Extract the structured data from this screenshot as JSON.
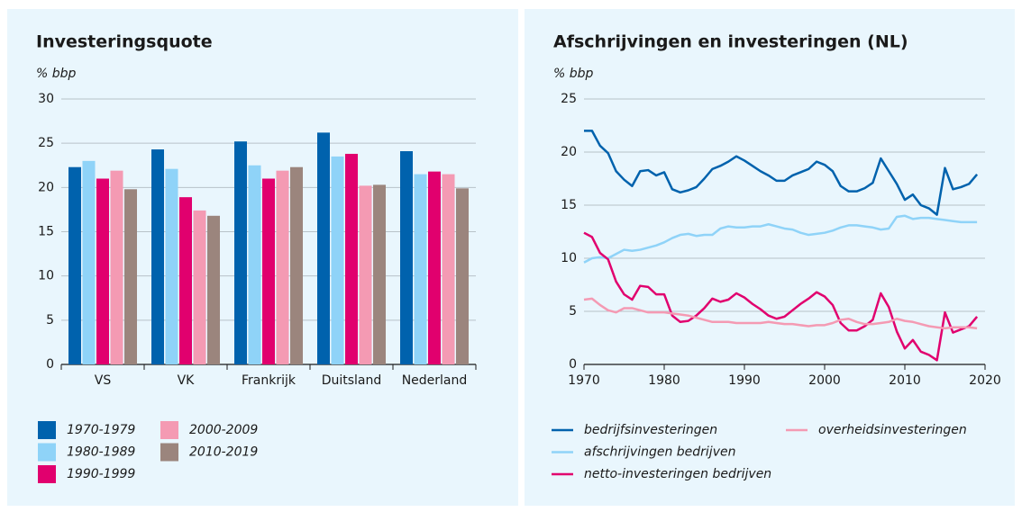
{
  "chart_data": [
    {
      "type": "bar",
      "title": "Investeringsquote",
      "y_label": "% bbp",
      "categories": [
        "VS",
        "VK",
        "Frankrijk",
        "Duitsland",
        "Nederland"
      ],
      "series": [
        {
          "name": "1970-1979",
          "color": "#0062ad",
          "values": [
            22.3,
            24.3,
            25.2,
            26.2,
            24.1
          ]
        },
        {
          "name": "1980-1989",
          "color": "#8fd3f8",
          "values": [
            23.0,
            22.1,
            22.5,
            23.5,
            21.5
          ]
        },
        {
          "name": "1990-1999",
          "color": "#e1006e",
          "values": [
            21.0,
            18.9,
            21.0,
            23.8,
            21.8
          ]
        },
        {
          "name": "2000-2009",
          "color": "#f49ab3",
          "values": [
            21.9,
            17.4,
            21.9,
            20.2,
            21.5
          ]
        },
        {
          "name": "2010-2019",
          "color": "#9b857d",
          "values": [
            19.8,
            16.8,
            22.3,
            20.3,
            19.9
          ]
        }
      ],
      "ylim": [
        0,
        30
      ],
      "yticks": [
        0,
        5,
        10,
        15,
        20,
        25,
        30
      ],
      "grid": true,
      "legend": "bottom"
    },
    {
      "type": "line",
      "title": "Afschrijvingen en investeringen (NL)",
      "y_label": "% bbp",
      "x": [
        1970,
        1971,
        1972,
        1973,
        1974,
        1975,
        1976,
        1977,
        1978,
        1979,
        1980,
        1981,
        1982,
        1983,
        1984,
        1985,
        1986,
        1987,
        1988,
        1989,
        1990,
        1991,
        1992,
        1993,
        1994,
        1995,
        1996,
        1997,
        1998,
        1999,
        2000,
        2001,
        2002,
        2003,
        2004,
        2005,
        2006,
        2007,
        2008,
        2009,
        2010,
        2011,
        2012,
        2013,
        2014,
        2015,
        2016,
        2017,
        2018,
        2019
      ],
      "series": [
        {
          "name": "bedrijfsinvesteringen",
          "color": "#0062ad",
          "values": [
            22.0,
            22.0,
            20.6,
            19.9,
            18.2,
            17.4,
            16.8,
            18.2,
            18.3,
            17.8,
            18.1,
            16.5,
            16.2,
            16.4,
            16.7,
            17.5,
            18.4,
            18.7,
            19.1,
            19.6,
            19.2,
            18.7,
            18.2,
            17.8,
            17.3,
            17.3,
            17.8,
            18.1,
            18.4,
            19.1,
            18.8,
            18.2,
            16.8,
            16.3,
            16.3,
            16.6,
            17.1,
            19.4,
            18.2,
            17.0,
            15.5,
            16.0,
            15.0,
            14.7,
            14.1,
            18.5,
            16.5,
            16.7,
            17.0,
            17.9
          ]
        },
        {
          "name": "afschrijvingen bedrijven",
          "color": "#8fd3f8",
          "values": [
            9.6,
            10.0,
            10.1,
            10.0,
            10.4,
            10.8,
            10.7,
            10.8,
            11.0,
            11.2,
            11.5,
            11.9,
            12.2,
            12.3,
            12.1,
            12.2,
            12.2,
            12.8,
            13.0,
            12.9,
            12.9,
            13.0,
            13.0,
            13.2,
            13.0,
            12.8,
            12.7,
            12.4,
            12.2,
            12.3,
            12.4,
            12.6,
            12.9,
            13.1,
            13.1,
            13.0,
            12.9,
            12.7,
            12.8,
            13.9,
            14.0,
            13.7,
            13.8,
            13.8,
            13.7,
            13.6,
            13.5,
            13.4,
            13.4,
            13.4
          ]
        },
        {
          "name": "netto-investeringen bedrijven",
          "color": "#e1006e",
          "values": [
            12.4,
            12.0,
            10.5,
            9.9,
            7.8,
            6.6,
            6.1,
            7.4,
            7.3,
            6.6,
            6.6,
            4.6,
            4.0,
            4.1,
            4.6,
            5.3,
            6.2,
            5.9,
            6.1,
            6.7,
            6.3,
            5.7,
            5.2,
            4.6,
            4.3,
            4.5,
            5.1,
            5.7,
            6.2,
            6.8,
            6.4,
            5.6,
            3.9,
            3.2,
            3.2,
            3.6,
            4.2,
            6.7,
            5.4,
            3.1,
            1.5,
            2.3,
            1.2,
            0.9,
            0.4,
            4.9,
            3.0,
            3.3,
            3.6,
            4.5
          ]
        },
        {
          "name": "overheidsinvesteringen",
          "color": "#f49ab3",
          "values": [
            6.1,
            6.2,
            5.6,
            5.1,
            4.9,
            5.3,
            5.3,
            5.1,
            4.9,
            4.9,
            4.9,
            4.8,
            4.7,
            4.6,
            4.4,
            4.2,
            4.0,
            4.0,
            4.0,
            3.9,
            3.9,
            3.9,
            3.9,
            4.0,
            3.9,
            3.8,
            3.8,
            3.7,
            3.6,
            3.7,
            3.7,
            3.9,
            4.2,
            4.3,
            4.0,
            3.8,
            3.8,
            3.9,
            4.0,
            4.3,
            4.1,
            4.0,
            3.8,
            3.6,
            3.5,
            3.4,
            3.5,
            3.5,
            3.5,
            3.4
          ]
        }
      ],
      "xlim": [
        1970,
        2020
      ],
      "xticks": [
        1970,
        1980,
        1990,
        2000,
        2010,
        2020
      ],
      "ylim": [
        0,
        25
      ],
      "yticks": [
        0,
        5,
        10,
        15,
        20,
        25
      ],
      "grid": true,
      "legend": "bottom"
    }
  ]
}
